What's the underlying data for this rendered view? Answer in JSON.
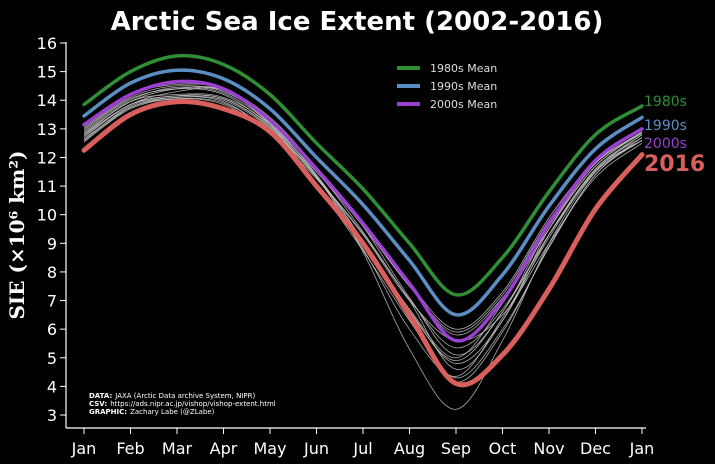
{
  "colors": {
    "background": "#000000",
    "m1980": "#2f8f35",
    "m1990": "#5b8fc4",
    "m2000": "#9a3fd0",
    "y2016": "#d95f5c",
    "years": "#c8c8c8"
  },
  "chart_data": {
    "type": "line",
    "title": "Arctic Sea Ice Extent (2002-2016)",
    "xlabel": "",
    "ylabel": "SIE (×10⁶ km²)",
    "ylim": [
      3,
      16
    ],
    "yticks": [
      "3",
      "4",
      "5",
      "6",
      "7",
      "8",
      "9",
      "10",
      "11",
      "12",
      "13",
      "14",
      "15",
      "16"
    ],
    "x": [
      "Jan",
      "Feb",
      "Mar",
      "Apr",
      "May",
      "Jun",
      "Jul",
      "Aug",
      "Sep",
      "Oct",
      "Nov",
      "Dec",
      "Jan"
    ],
    "grid": false,
    "legend_position": "top-center",
    "legend": [
      "1980s Mean",
      "1990s Mean",
      "2000s Mean"
    ],
    "end_labels": [
      "1980s",
      "1990s",
      "2000s",
      "2016"
    ],
    "series": [
      {
        "name": "1980s Mean",
        "color": "#2f8f35",
        "values": [
          13.85,
          15.0,
          15.55,
          15.25,
          14.2,
          12.5,
          10.9,
          9.0,
          7.2,
          8.5,
          10.8,
          12.8,
          13.8
        ]
      },
      {
        "name": "1990s Mean",
        "color": "#5b8fc4",
        "values": [
          13.45,
          14.6,
          15.05,
          14.75,
          13.7,
          12.0,
          10.35,
          8.4,
          6.5,
          7.9,
          10.3,
          12.3,
          13.4
        ]
      },
      {
        "name": "2000s Mean",
        "color": "#9a3fd0",
        "values": [
          13.15,
          14.2,
          14.65,
          14.4,
          13.3,
          11.6,
          9.7,
          7.6,
          5.6,
          7.0,
          9.7,
          11.9,
          13.0
        ]
      },
      {
        "name": "2016",
        "color": "#d95f5c",
        "values": [
          12.25,
          13.5,
          13.95,
          13.7,
          12.9,
          11.0,
          9.0,
          6.5,
          4.1,
          5.1,
          7.4,
          10.2,
          12.1
        ]
      }
    ],
    "years_2002_2015": [
      [
        12.95,
        14.05,
        14.4,
        14.2,
        13.1,
        11.5,
        9.6,
        7.5,
        5.9,
        7.2,
        9.8,
        11.8,
        12.9
      ],
      [
        13.05,
        14.15,
        14.6,
        14.35,
        13.25,
        11.65,
        9.7,
        7.6,
        6.0,
        7.3,
        9.9,
        11.9,
        13.0
      ],
      [
        12.9,
        14.0,
        14.45,
        14.25,
        13.2,
        11.55,
        9.65,
        7.5,
        5.8,
        7.1,
        9.6,
        11.8,
        12.85
      ],
      [
        12.6,
        13.8,
        14.1,
        14.0,
        13.0,
        11.3,
        9.35,
        7.05,
        5.35,
        6.7,
        9.3,
        11.5,
        12.6
      ],
      [
        12.55,
        13.7,
        14.05,
        13.85,
        12.85,
        11.25,
        9.3,
        7.0,
        5.6,
        6.5,
        9.0,
        11.3,
        12.5
      ],
      [
        12.8,
        13.85,
        14.15,
        14.05,
        13.05,
        11.35,
        9.05,
        6.35,
        4.15,
        5.9,
        8.9,
        11.4,
        12.7
      ],
      [
        13.0,
        14.1,
        14.5,
        14.3,
        13.3,
        11.55,
        9.4,
        7.0,
        4.6,
        6.3,
        9.5,
        11.7,
        12.9
      ],
      [
        13.1,
        14.2,
        14.55,
        14.4,
        13.4,
        11.65,
        9.6,
        7.1,
        5.1,
        6.6,
        9.6,
        11.8,
        13.0
      ],
      [
        12.85,
        13.95,
        14.4,
        14.35,
        13.15,
        11.1,
        9.05,
        6.65,
        4.8,
        6.3,
        9.3,
        11.6,
        12.8
      ],
      [
        12.55,
        13.75,
        14.1,
        13.95,
        12.85,
        11.0,
        8.75,
        6.3,
        4.3,
        6.0,
        8.85,
        11.4,
        12.6
      ],
      [
        12.75,
        13.85,
        14.3,
        14.35,
        13.2,
        11.35,
        8.7,
        5.3,
        3.2,
        5.6,
        9.0,
        11.5,
        12.8
      ],
      [
        12.8,
        13.95,
        14.2,
        14.1,
        13.15,
        11.4,
        9.1,
        6.7,
        5.0,
        6.9,
        9.5,
        11.7,
        12.85
      ],
      [
        12.7,
        13.85,
        14.15,
        14.05,
        13.05,
        11.3,
        9.0,
        6.6,
        4.9,
        6.6,
        9.3,
        11.6,
        12.7
      ],
      [
        12.65,
        13.75,
        14.05,
        13.9,
        12.9,
        11.1,
        8.8,
        6.0,
        4.35,
        6.4,
        9.2,
        11.55,
        12.6
      ]
    ]
  },
  "credits": [
    {
      "key": "DATA:",
      "text": "JAXA (Arctic Data archive System, NIPR)"
    },
    {
      "key": "CSV:",
      "text": "https://ads.nipr.ac.jp/vishop/vishop-extent.html"
    },
    {
      "key": "GRAPHIC:",
      "text": "Zachary Labe (@ZLabe)"
    }
  ]
}
